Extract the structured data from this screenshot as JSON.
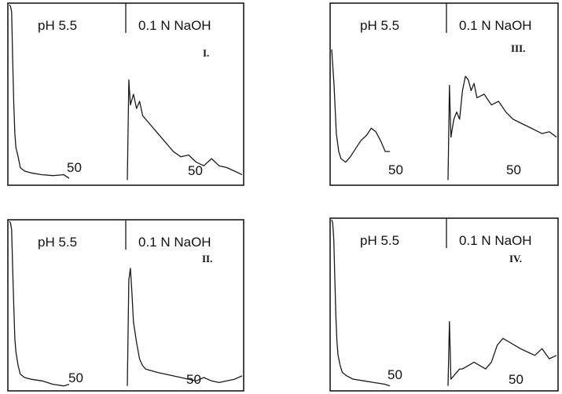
{
  "chart_data": [
    {
      "type": "line",
      "panel_label": "I.",
      "sections": [
        {
          "label": "pH 5.5",
          "tick_label": "50",
          "x": [
            0,
            1,
            2,
            3,
            4,
            5,
            6,
            8,
            10,
            14,
            20,
            30,
            40,
            50,
            55
          ],
          "values": [
            100,
            99,
            96,
            70,
            45,
            28,
            20,
            15,
            9,
            7,
            6,
            5,
            4.5,
            5,
            3
          ]
        },
        {
          "label": "0.1 N NaOH",
          "tick_label": "50",
          "x": [
            0,
            1,
            2,
            4,
            6,
            8,
            10,
            14,
            18,
            22,
            26,
            30,
            35,
            40,
            45,
            50,
            55,
            60,
            65,
            70,
            75
          ],
          "values": [
            2,
            58,
            44,
            50,
            42,
            46,
            38,
            34,
            30,
            26,
            22,
            18,
            15,
            16,
            12,
            10,
            14,
            10,
            9,
            7,
            5
          ]
        }
      ]
    },
    {
      "type": "line",
      "panel_label": "III.",
      "sections": [
        {
          "label": "pH 5.5",
          "tick_label": "50",
          "x": [
            0,
            2,
            4,
            6,
            8,
            12,
            16,
            20,
            25,
            30,
            34,
            38,
            42,
            46,
            50
          ],
          "values": [
            75,
            55,
            28,
            18,
            14,
            12,
            15,
            19,
            24,
            27,
            31,
            29,
            24,
            18,
            18
          ]
        },
        {
          "label": "0.1 N NaOH",
          "tick_label": "50",
          "x": [
            0,
            1,
            2,
            4,
            6,
            8,
            10,
            12,
            14,
            16,
            18,
            20,
            25,
            30,
            35,
            40,
            45,
            50,
            55,
            60,
            65,
            70,
            75
          ],
          "values": [
            2,
            55,
            26,
            36,
            40,
            36,
            52,
            60,
            58,
            52,
            56,
            48,
            50,
            44,
            46,
            40,
            36,
            34,
            32,
            30,
            28,
            29,
            26
          ]
        }
      ]
    },
    {
      "type": "line",
      "panel_label": "II.",
      "sections": [
        {
          "label": "pH 5.5",
          "tick_label": "50",
          "x": [
            0,
            1,
            2,
            3,
            4,
            5,
            6,
            8,
            10,
            14,
            20,
            30,
            40,
            50,
            55
          ],
          "values": [
            100,
            99,
            95,
            72,
            50,
            30,
            22,
            14,
            9,
            7,
            6,
            5,
            3,
            2,
            3
          ]
        },
        {
          "label": "0.1 N NaOH",
          "tick_label": "50",
          "x": [
            0,
            1,
            2,
            3,
            4,
            6,
            8,
            10,
            12,
            16,
            20,
            25,
            30,
            35,
            40,
            45,
            50,
            55,
            60,
            65,
            70,
            75
          ],
          "values": [
            2,
            65,
            72,
            58,
            40,
            28,
            18,
            14,
            12,
            11,
            10,
            9,
            8,
            7,
            6,
            5,
            7,
            5,
            4,
            5,
            6,
            8
          ]
        }
      ]
    },
    {
      "type": "line",
      "panel_label": "IV.",
      "sections": [
        {
          "label": "pH 5.5",
          "tick_label": "50",
          "x": [
            0,
            1,
            2,
            3,
            4,
            5,
            6,
            8,
            10,
            14,
            20,
            30,
            40,
            50,
            55
          ],
          "values": [
            100,
            98,
            88,
            65,
            42,
            28,
            20,
            14,
            10,
            8,
            6,
            5,
            4,
            3,
            2
          ]
        },
        {
          "label": "0.1 N NaOH",
          "tick_label": "50",
          "x": [
            0,
            1,
            2,
            4,
            6,
            8,
            10,
            14,
            18,
            22,
            26,
            30,
            34,
            38,
            42,
            46,
            50,
            55,
            60,
            65,
            70,
            75
          ],
          "values": [
            2,
            40,
            6,
            8,
            10,
            12,
            12,
            14,
            16,
            14,
            12,
            16,
            26,
            30,
            28,
            26,
            24,
            22,
            20,
            24,
            18,
            20
          ]
        }
      ]
    }
  ]
}
